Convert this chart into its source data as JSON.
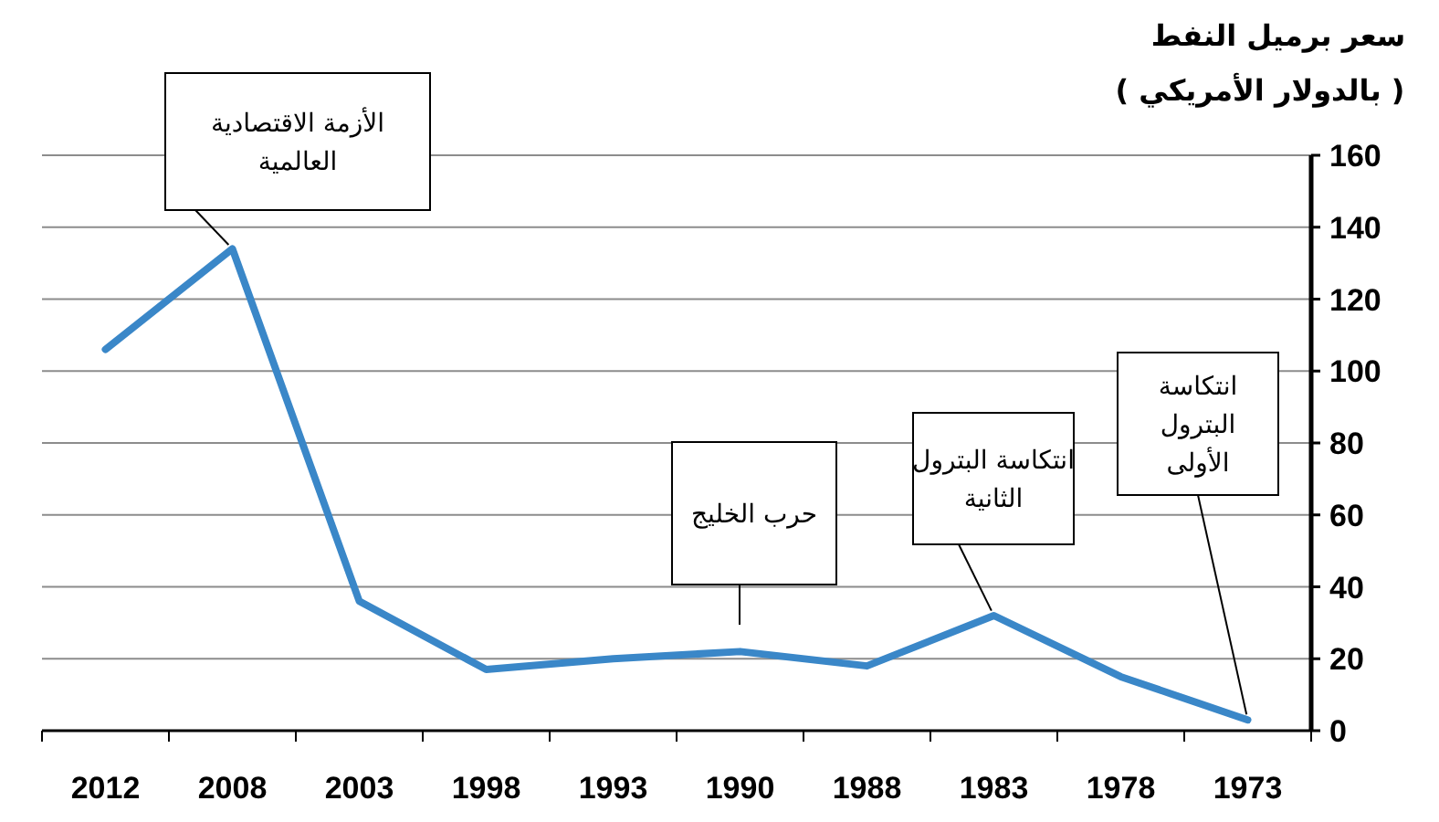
{
  "chart_data": {
    "type": "line",
    "title": "سعر برميل النفط",
    "subtitle": "( بالدولار الأمريكي )",
    "categories": [
      "2012",
      "2008",
      "2003",
      "1998",
      "1993",
      "1990",
      "1988",
      "1983",
      "1978",
      "1973"
    ],
    "series": [
      {
        "color": "#3a87c8",
        "values": [
          106,
          134,
          36,
          17,
          20,
          22,
          18,
          32,
          15,
          3
        ]
      }
    ],
    "ylim": [
      0,
      160
    ],
    "yticks": [
      0,
      20,
      40,
      60,
      80,
      100,
      120,
      140,
      160
    ],
    "grid": "y",
    "marker": "none",
    "line_style": "solid",
    "annotations": [
      {
        "text": "الأزمة الاقتصادية العالمية",
        "x": "2008",
        "y": 134
      },
      "حرب الخليج",
      {
        "text": "انتكاسة البترول الثانية",
        "x": "1983",
        "y": 32
      },
      {
        "text": "انتكاسة البترول الأولى",
        "x": "1973",
        "y": 3
      }
    ]
  }
}
